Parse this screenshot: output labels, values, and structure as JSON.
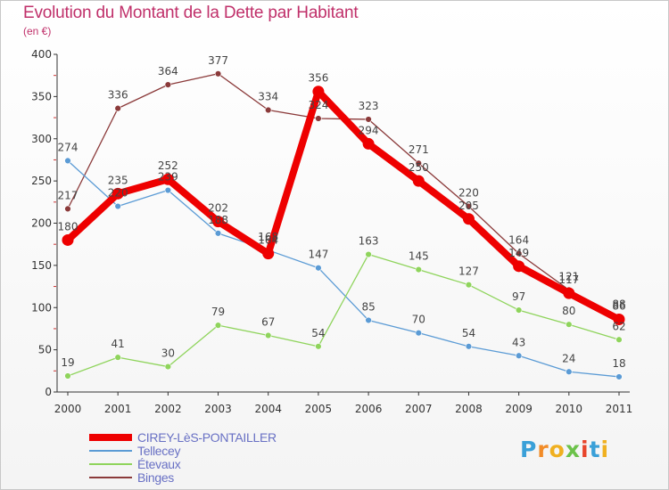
{
  "title": "Evolution du Montant de la Dette par Habitant",
  "subtitle": "(en €)",
  "logo": "Proxiti",
  "chart_data": {
    "type": "line",
    "x": [
      "2000",
      "2001",
      "2002",
      "2003",
      "2004",
      "2005",
      "2006",
      "2007",
      "2008",
      "2009",
      "2010",
      "2011"
    ],
    "ylim": [
      0,
      400
    ],
    "yticks": [
      0,
      50,
      100,
      150,
      200,
      250,
      300,
      350,
      400
    ],
    "grid": false,
    "legend_position": "bottom-left",
    "series": [
      {
        "name": "CIREY-LèS-PONTAILLER",
        "color": "#ee0000",
        "values": [
          180,
          235,
          252,
          202,
          164,
          356,
          294,
          250,
          205,
          149,
          117,
          86
        ]
      },
      {
        "name": "Tellecey",
        "color": "#5b9bd5",
        "values": [
          274,
          220,
          239,
          188,
          168,
          147,
          85,
          70,
          54,
          43,
          24,
          18
        ]
      },
      {
        "name": "Étevaux",
        "color": "#8fd45c",
        "values": [
          19,
          41,
          30,
          79,
          67,
          54,
          163,
          145,
          127,
          97,
          80,
          62
        ]
      },
      {
        "name": "Binges",
        "color": "#8b3a3a",
        "values": [
          217,
          336,
          364,
          377,
          334,
          324,
          323,
          271,
          220,
          164,
          121,
          88
        ]
      }
    ]
  }
}
